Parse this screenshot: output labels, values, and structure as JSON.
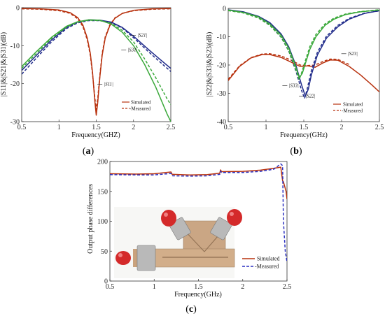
{
  "figure": {
    "panels": [
      {
        "id": "a",
        "label_open": "(",
        "label_letter": "a",
        "label_close": ")"
      },
      {
        "id": "b",
        "label_open": "(",
        "label_letter": "b",
        "label_close": ")"
      },
      {
        "id": "c",
        "label_open": "(",
        "label_letter": "c",
        "label_close": ")"
      }
    ]
  },
  "photo": {
    "description_icon": "fabricated-circuit-photo",
    "background_color": "#ffffff",
    "board_color": "#c9a27d",
    "connector_color": "#d42a2a"
  },
  "chart_data": [
    {
      "id": "a",
      "type": "line",
      "xlabel": "Frequency(GHZ)",
      "ylabel": "|S11|&|S21|&|S31|(dB)",
      "xlim": [
        0.5,
        2.5
      ],
      "ylim": [
        -30,
        0
      ],
      "xticks": [
        "0.5",
        "1",
        "1.5",
        "2",
        "2.5"
      ],
      "yticks": [
        "0",
        "-10",
        "-20",
        "-30"
      ],
      "grid": false,
      "legend": {
        "placement": "lower-right",
        "entries": [
          "Simulated",
          "Measured"
        ]
      },
      "legend_prefix": [
        "",
        "-"
      ],
      "annotations": [
        {
          "text": "|S21|",
          "x": 2.05,
          "y": -7.6
        },
        {
          "text": "|S31|",
          "x": 1.92,
          "y": -11.5
        },
        {
          "text": "|S11|",
          "x": 1.6,
          "y": -20.5
        }
      ],
      "series": [
        {
          "name": "S11 simulated",
          "color": "#b8320f",
          "dash": false,
          "x": [
            0.5,
            0.75,
            1.0,
            1.15,
            1.25,
            1.32,
            1.38,
            1.42,
            1.45,
            1.48,
            1.5,
            1.52,
            1.55,
            1.58,
            1.62,
            1.68,
            1.75,
            1.85,
            2.0,
            2.25,
            2.5
          ],
          "y": [
            -0.2,
            -0.3,
            -0.6,
            -1.3,
            -2.6,
            -4.5,
            -8.0,
            -12.0,
            -17.0,
            -24.5,
            -28.3,
            -25.0,
            -18.0,
            -12.5,
            -8.0,
            -4.8,
            -2.8,
            -1.5,
            -0.7,
            -0.3,
            -0.2
          ]
        },
        {
          "name": "S11 measured",
          "color": "#b8320f",
          "dash": true,
          "x": [
            0.5,
            0.75,
            1.0,
            1.15,
            1.25,
            1.32,
            1.38,
            1.42,
            1.45,
            1.48,
            1.5,
            1.52,
            1.55,
            1.58,
            1.62,
            1.68,
            1.75,
            1.85,
            2.0,
            2.25,
            2.5
          ],
          "y": [
            -0.3,
            -0.4,
            -0.8,
            -1.5,
            -2.9,
            -4.9,
            -8.5,
            -12.5,
            -17.5,
            -23.5,
            -26.8,
            -24.0,
            -17.5,
            -12.0,
            -7.7,
            -4.6,
            -2.7,
            -1.5,
            -0.8,
            -0.4,
            -0.3
          ]
        },
        {
          "name": "S21 simulated",
          "color": "#1f2a8a",
          "dash": false,
          "x": [
            0.5,
            0.7,
            0.9,
            1.1,
            1.25,
            1.4,
            1.55,
            1.7,
            1.85,
            2.0,
            2.2,
            2.35,
            2.5
          ],
          "y": [
            -16.5,
            -12.5,
            -8.5,
            -5.2,
            -3.8,
            -3.2,
            -3.3,
            -3.8,
            -5.2,
            -7.5,
            -11.0,
            -13.5,
            -16.0
          ]
        },
        {
          "name": "S21 measured",
          "color": "#1f2a8a",
          "dash": true,
          "x": [
            0.5,
            0.7,
            0.9,
            1.1,
            1.25,
            1.4,
            1.55,
            1.7,
            1.85,
            2.0,
            2.2,
            2.35,
            2.5
          ],
          "y": [
            -17.5,
            -13.2,
            -9.0,
            -5.5,
            -4.0,
            -3.4,
            -3.4,
            -3.9,
            -5.4,
            -7.9,
            -11.6,
            -14.2,
            -16.8
          ]
        },
        {
          "name": "S31 simulated",
          "color": "#3aa83a",
          "dash": false,
          "x": [
            0.5,
            0.7,
            0.9,
            1.1,
            1.25,
            1.4,
            1.55,
            1.7,
            1.85,
            2.0,
            2.15,
            2.3,
            2.45,
            2.5
          ],
          "y": [
            -15.5,
            -11.5,
            -7.8,
            -4.9,
            -3.7,
            -3.2,
            -3.3,
            -4.3,
            -6.5,
            -10.0,
            -15.0,
            -21.0,
            -28.0,
            -30.0
          ]
        },
        {
          "name": "S31 measured",
          "color": "#3aa83a",
          "dash": true,
          "x": [
            0.5,
            0.7,
            0.9,
            1.1,
            1.25,
            1.4,
            1.55,
            1.7,
            1.85,
            2.0,
            2.15,
            2.3,
            2.45,
            2.5
          ],
          "y": [
            -16.0,
            -12.0,
            -8.1,
            -5.1,
            -3.8,
            -3.3,
            -3.4,
            -4.1,
            -6.0,
            -9.0,
            -13.5,
            -18.5,
            -24.0,
            -25.5
          ]
        }
      ]
    },
    {
      "id": "b",
      "type": "line",
      "xlabel": "Frequency(GHz)",
      "ylabel": "|S22|&|S33|&|S23|(dB)",
      "xlim": [
        0.5,
        2.5
      ],
      "ylim": [
        -40,
        0
      ],
      "xticks": [
        "0.5",
        "1",
        "1.5",
        "2",
        "2.5"
      ],
      "yticks": [
        "0",
        "-10",
        "-20",
        "-30",
        "-40"
      ],
      "grid": false,
      "legend": {
        "placement": "lower-right",
        "entries": [
          "Simulated",
          "Measured"
        ]
      },
      "legend_prefix": [
        "",
        "-"
      ],
      "annotations": [
        {
          "text": "|S23|",
          "x": 2.08,
          "y": -16.5
        },
        {
          "text": "|S33|",
          "x": 1.3,
          "y": -27.8
        },
        {
          "text": "|S22|",
          "x": 1.52,
          "y": -31.5
        }
      ],
      "series": [
        {
          "name": "S23 simulated",
          "color": "#b8320f",
          "dash": false,
          "x": [
            0.5,
            0.65,
            0.8,
            0.95,
            1.05,
            1.2,
            1.35,
            1.45,
            1.55,
            1.65,
            1.75,
            1.85,
            1.95,
            2.1,
            2.25,
            2.4,
            2.5
          ],
          "y": [
            -25.5,
            -20.5,
            -17.5,
            -16.3,
            -16.3,
            -17.3,
            -19.2,
            -20.5,
            -20.3,
            -20.8,
            -19.3,
            -18.2,
            -18.3,
            -20.5,
            -23.5,
            -27.0,
            -29.5
          ]
        },
        {
          "name": "S23 measured",
          "color": "#b8320f",
          "dash": true,
          "x": [
            0.5,
            0.65,
            0.8,
            0.95,
            1.05,
            1.2,
            1.35,
            1.45,
            1.55,
            1.65,
            1.75,
            1.85,
            1.95,
            2.1
          ],
          "y": [
            -25.0,
            -20.3,
            -17.4,
            -16.1,
            -16.0,
            -16.8,
            -18.5,
            -20.0,
            -20.2,
            -20.0,
            -18.8,
            -17.9,
            -18.0,
            -19.8
          ]
        },
        {
          "name": "S33 simulated",
          "color": "#1f2a8a",
          "dash": false,
          "x": [
            0.5,
            0.7,
            0.9,
            1.05,
            1.2,
            1.3,
            1.4,
            1.47,
            1.52,
            1.56,
            1.6,
            1.68,
            1.8,
            1.95,
            2.1,
            2.3,
            2.5
          ],
          "y": [
            -0.5,
            -1.2,
            -2.8,
            -5.0,
            -9.0,
            -13.5,
            -20.5,
            -27.0,
            -31.0,
            -28.5,
            -23.5,
            -16.5,
            -10.5,
            -6.5,
            -3.8,
            -1.8,
            -0.8
          ]
        },
        {
          "name": "S33 measured",
          "color": "#1f2a8a",
          "dash": true,
          "x": [
            0.5,
            0.7,
            0.9,
            1.05,
            1.2,
            1.3,
            1.4,
            1.47,
            1.51,
            1.54,
            1.6,
            1.68,
            1.8,
            1.95,
            2.1,
            2.3,
            2.5
          ],
          "y": [
            -0.7,
            -1.5,
            -3.2,
            -5.8,
            -10.2,
            -15.0,
            -22.5,
            -29.0,
            -31.8,
            -29.0,
            -22.0,
            -15.5,
            -9.8,
            -6.0,
            -3.5,
            -1.7,
            -0.9
          ]
        },
        {
          "name": "S22 simulated",
          "color": "#3aa83a",
          "dash": false,
          "x": [
            0.5,
            0.7,
            0.9,
            1.05,
            1.2,
            1.3,
            1.38,
            1.44,
            1.48,
            1.52,
            1.58,
            1.66,
            1.78,
            1.9,
            2.05,
            2.25,
            2.5
          ],
          "y": [
            -0.6,
            -1.4,
            -3.0,
            -5.5,
            -9.5,
            -14.0,
            -19.5,
            -24.5,
            -23.0,
            -19.5,
            -14.5,
            -10.0,
            -6.0,
            -3.8,
            -2.2,
            -1.2,
            -0.6
          ]
        },
        {
          "name": "S22 measured",
          "color": "#3aa83a",
          "dash": true,
          "x": [
            0.5,
            0.7,
            0.9,
            1.05,
            1.2,
            1.3,
            1.38,
            1.44,
            1.48,
            1.52,
            1.58,
            1.66,
            1.78,
            1.9,
            2.05,
            2.25,
            2.5
          ],
          "y": [
            -0.8,
            -1.6,
            -3.4,
            -6.0,
            -10.2,
            -15.0,
            -20.5,
            -25.2,
            -22.0,
            -18.5,
            -13.5,
            -9.2,
            -5.5,
            -3.4,
            -2.0,
            -1.1,
            -0.5
          ]
        }
      ]
    },
    {
      "id": "c",
      "type": "line",
      "xlabel": "Frequency(GHz)",
      "ylabel": "Output phase differences",
      "xlim": [
        0.5,
        2.5
      ],
      "ylim": [
        0,
        200
      ],
      "xticks": [
        "0.5",
        "1",
        "1.5",
        "2",
        "2.5"
      ],
      "yticks": [
        "0",
        "50",
        "100",
        "150",
        "200"
      ],
      "grid": false,
      "legend": {
        "placement": "lower-right",
        "entries": [
          "Simulated",
          "Measured"
        ]
      },
      "legend_prefix": [
        "",
        "-"
      ],
      "series": [
        {
          "name": "Simulated",
          "color": "#b8320f",
          "dash": false,
          "x": [
            0.5,
            0.8,
            1.0,
            1.19,
            1.2,
            1.21,
            1.4,
            1.6,
            1.74,
            1.75,
            1.76,
            2.0,
            2.2,
            2.35,
            2.43,
            2.45,
            2.46,
            2.49,
            2.5
          ],
          "y": [
            179.5,
            179.0,
            179.5,
            182.5,
            179.0,
            178.5,
            177.5,
            178.0,
            180.5,
            186.0,
            183.0,
            183.5,
            185.5,
            188.5,
            190.5,
            168.0,
            166.0,
            150.0,
            137.0
          ]
        },
        {
          "name": "Measured",
          "color": "#2a2fc0",
          "dash": true,
          "x": [
            0.5,
            0.8,
            1.0,
            1.19,
            1.2,
            1.21,
            1.4,
            1.6,
            1.74,
            1.75,
            1.76,
            2.0,
            2.2,
            2.35,
            2.43,
            2.45,
            2.46,
            2.48,
            2.5
          ],
          "y": [
            178.0,
            177.5,
            177.5,
            180.0,
            176.5,
            176.0,
            175.5,
            176.0,
            178.5,
            184.0,
            181.5,
            181.5,
            183.5,
            187.0,
            196.0,
            193.0,
            100.0,
            50.0,
            32.0
          ]
        }
      ]
    }
  ]
}
